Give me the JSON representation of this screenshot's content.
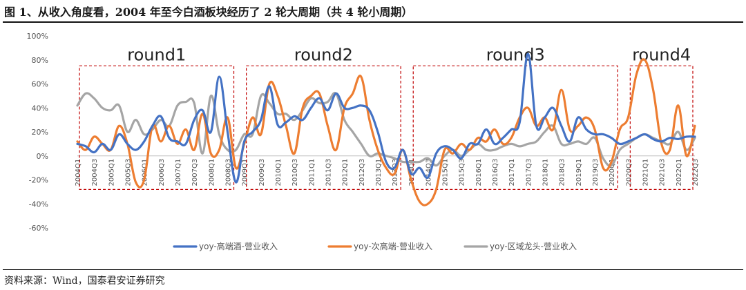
{
  "figure": {
    "title": "图 1、从收入角度看，2004 年至今白酒板块经历了 2 轮大周期（共 4 轮小周期）",
    "source": "资料来源：Wind，国泰君安证券研究"
  },
  "chart_data": {
    "type": "line",
    "title": "",
    "xlabel": "",
    "ylabel": "",
    "ylim": [
      -60,
      100
    ],
    "y_ticks": [
      -60,
      -40,
      -20,
      0,
      20,
      40,
      60,
      80,
      100
    ],
    "y_tick_labels": [
      "-60%",
      "-40%",
      "-20%",
      "0%",
      "20%",
      "40%",
      "60%",
      "80%",
      "100%"
    ],
    "y_unit": "%",
    "grid": false,
    "legend_position": "bottom",
    "x": [
      "2004Q1",
      "2004Q2",
      "2004Q3",
      "2004Q4",
      "2005Q1",
      "2005Q2",
      "2005Q3",
      "2005Q4",
      "2006Q1",
      "2006Q2",
      "2006Q3",
      "2006Q4",
      "2007Q1",
      "2007Q2",
      "2007Q3",
      "2007Q4",
      "2008Q1",
      "2008Q2",
      "2008Q3",
      "2008Q4",
      "2009Q1",
      "2009Q2",
      "2009Q3",
      "2009Q4",
      "2010Q1",
      "2010Q2",
      "2010Q3",
      "2010Q4",
      "2011Q1",
      "2011Q2",
      "2011Q3",
      "2011Q4",
      "2012Q1",
      "2012Q2",
      "2012Q3",
      "2012Q4",
      "2013Q1",
      "2013Q2",
      "2013Q3",
      "2013Q4",
      "2014Q1",
      "2014Q2",
      "2014Q3",
      "2014Q4",
      "2015Q1",
      "2015Q2",
      "2015Q3",
      "2015Q4",
      "2016Q1",
      "2016Q2",
      "2016Q3",
      "2016Q4",
      "2017Q1",
      "2017Q2",
      "2017Q3",
      "2017Q4",
      "2018Q1",
      "2018Q2",
      "2018Q3",
      "2018Q4",
      "2019Q1",
      "2019Q2",
      "2019Q3",
      "2019Q4",
      "2020Q1",
      "2020Q2",
      "2020Q3",
      "2020Q4",
      "2021Q1",
      "2021Q2",
      "2021Q3",
      "2021Q4",
      "2022Q1",
      "2022Q2",
      "2022Q3"
    ],
    "x_tick_labels": [
      "2004Q1",
      "2004Q3",
      "2005Q1",
      "2005Q3",
      "2006Q1",
      "2006Q3",
      "2007Q1",
      "2007Q3",
      "2008Q1",
      "2008Q3",
      "2009Q1",
      "2009Q3",
      "2010Q1",
      "2010Q3",
      "2011Q1",
      "2011Q3",
      "2012Q1",
      "2012Q3",
      "2013Q1",
      "2013Q3",
      "2014Q1",
      "2014Q3",
      "2015Q1",
      "2015Q3",
      "2016Q1",
      "2016Q3",
      "2017Q1",
      "2017Q3",
      "2018Q1",
      "2018Q3",
      "2019Q1",
      "2019Q3",
      "2020Q1",
      "2020Q3",
      "2021Q1",
      "2021Q3",
      "2022Q1",
      "2022Q3"
    ],
    "series": [
      {
        "name": "yoy-高端酒-营业收入",
        "color": "#4472C4",
        "values": [
          10,
          8,
          3,
          10,
          5,
          18,
          10,
          5,
          12,
          25,
          33,
          15,
          12,
          10,
          30,
          38,
          20,
          66,
          20,
          -22,
          12,
          20,
          30,
          58,
          26,
          28,
          33,
          30,
          40,
          48,
          38,
          52,
          40,
          40,
          42,
          38,
          20,
          -5,
          -10,
          5,
          -15,
          -10,
          -18,
          2,
          8,
          5,
          -2,
          10,
          10,
          22,
          10,
          15,
          22,
          28,
          85,
          25,
          32,
          40,
          25,
          12,
          32,
          22,
          18,
          18,
          15,
          10,
          12,
          15,
          18,
          14,
          12,
          15,
          14,
          16,
          16
        ]
      },
      {
        "name": "yoy-次高端-营业收入",
        "color": "#ED7D31",
        "values": [
          12,
          5,
          16,
          10,
          5,
          25,
          10,
          -22,
          -20,
          25,
          12,
          25,
          10,
          22,
          5,
          35,
          2,
          5,
          32,
          -10,
          10,
          32,
          18,
          60,
          50,
          25,
          2,
          40,
          50,
          52,
          25,
          5,
          40,
          52,
          66,
          30,
          5,
          -10,
          -15,
          5,
          -20,
          -38,
          -40,
          -28,
          5,
          2,
          10,
          5,
          15,
          12,
          22,
          10,
          15,
          32,
          40,
          25,
          32,
          22,
          55,
          22,
          25,
          32,
          22,
          -10,
          -5,
          22,
          32,
          68,
          80,
          55,
          10,
          5,
          42,
          0,
          25
        ]
      },
      {
        "name": "yoy-区域龙头-营业收入",
        "color": "#A5A5A5",
        "values": [
          42,
          52,
          48,
          40,
          38,
          42,
          20,
          30,
          18,
          22,
          30,
          25,
          42,
          45,
          44,
          2,
          50,
          18,
          5,
          5,
          18,
          18,
          50,
          44,
          35,
          35,
          30,
          38,
          48,
          44,
          45,
          52,
          30,
          20,
          10,
          0,
          2,
          0,
          -2,
          -5,
          -5,
          -5,
          -2,
          -8,
          0,
          5,
          0,
          5,
          10,
          5,
          5,
          8,
          10,
          8,
          10,
          12,
          20,
          25,
          10,
          10,
          12,
          10,
          15,
          -2,
          -8,
          5,
          10,
          15,
          18,
          15,
          12,
          10,
          20,
          5,
          15
        ]
      }
    ],
    "annotations": [
      {
        "label": "round1",
        "from": "2004Q1",
        "to": "2008Q4",
        "y_top": 75,
        "y_bottom": -28
      },
      {
        "label": "round2",
        "from": "2009Q1",
        "to": "2013Q4",
        "y_top": 75,
        "y_bottom": -28
      },
      {
        "label": "round3",
        "from": "2014Q1",
        "to": "2020Q2",
        "y_top": 75,
        "y_bottom": -28
      },
      {
        "label": "round4",
        "from": "2020Q3",
        "to": "2022Q3",
        "y_top": 75,
        "y_bottom": -28
      }
    ]
  }
}
